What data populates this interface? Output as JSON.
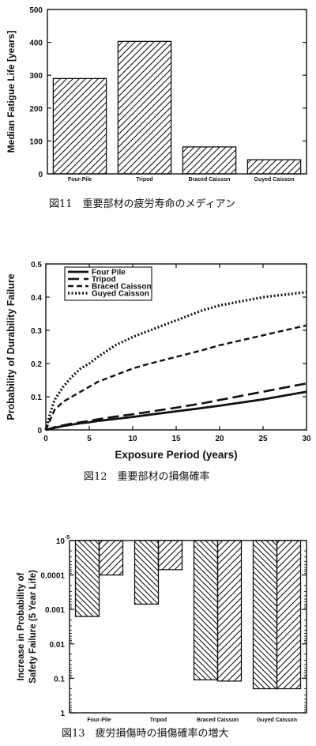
{
  "chart_data": [
    {
      "type": "bar",
      "ylabel": "Median Fatigue Life [years]",
      "categories": [
        "Four-Pile",
        "Tripod",
        "Braced  Caisson",
        "Guyed  Caisson"
      ],
      "values": [
        290,
        403,
        82,
        43
      ],
      "ylim": [
        0,
        500
      ],
      "yticks": [
        "0",
        "100",
        "200",
        "300",
        "400",
        "500"
      ],
      "caption": "図11　重要部材の疲労寿命のメディアン"
    },
    {
      "type": "line",
      "xlabel": "Exposure  Period  (years)",
      "ylabel": "Probability  of  Durability  Failure",
      "xlim": [
        0,
        30
      ],
      "ylim": [
        0,
        0.5
      ],
      "xticks": [
        "0",
        "5",
        "10",
        "15",
        "20",
        "25",
        "30"
      ],
      "yticks": [
        "0",
        "0.1",
        "0.2",
        "0.3",
        "0.4",
        "0.5"
      ],
      "legend_position": "top-left",
      "x": [
        0,
        0.5,
        1,
        2,
        3,
        4,
        5,
        6,
        8,
        10,
        12,
        15,
        18,
        20,
        25,
        30
      ],
      "series": [
        {
          "name": "Four Pile",
          "values": [
            0,
            0.003,
            0.006,
            0.012,
            0.016,
            0.02,
            0.023,
            0.027,
            0.033,
            0.039,
            0.046,
            0.056,
            0.066,
            0.073,
            0.092,
            0.115
          ]
        },
        {
          "name": "Tripod",
          "values": [
            0,
            0.004,
            0.008,
            0.014,
            0.019,
            0.023,
            0.027,
            0.032,
            0.04,
            0.047,
            0.055,
            0.067,
            0.08,
            0.09,
            0.115,
            0.14
          ]
        },
        {
          "name": "Braced Caisson",
          "values": [
            0,
            0.03,
            0.06,
            0.085,
            0.1,
            0.115,
            0.13,
            0.145,
            0.165,
            0.185,
            0.2,
            0.22,
            0.24,
            0.255,
            0.285,
            0.315
          ]
        },
        {
          "name": "Guyed Caisson",
          "values": [
            0,
            0.05,
            0.09,
            0.13,
            0.16,
            0.185,
            0.2,
            0.22,
            0.255,
            0.28,
            0.3,
            0.33,
            0.36,
            0.375,
            0.4,
            0.415
          ]
        }
      ],
      "caption": "図12　重要部材の損傷確率"
    },
    {
      "type": "bar",
      "ylabel": "Increase in Probability of Safety Failure (5 Year Life)",
      "ylabel_lines": [
        "Increase in Probability of",
        "Safety Failure (5 Year Life)"
      ],
      "yscale": "log-reversed",
      "ytick_values": [
        1e-05,
        0.0001,
        0.001,
        0.01,
        0.1,
        1
      ],
      "yticks": [
        "10",
        "0.0001",
        "0.001",
        "0.01",
        "0.1",
        "1"
      ],
      "ytick_top_exponent": "-5",
      "categories": [
        "Four-Pile",
        "Tripod",
        "Braced  Caisson",
        "Guyed  Caisson"
      ],
      "series": [
        {
          "values": [
            0.0016,
            0.0007,
            0.11,
            0.2
          ]
        },
        {
          "values": [
            0.0001,
            7e-05,
            0.12,
            0.2
          ]
        }
      ],
      "caption": "図13　疲労損傷時の損傷確率の増大"
    }
  ]
}
